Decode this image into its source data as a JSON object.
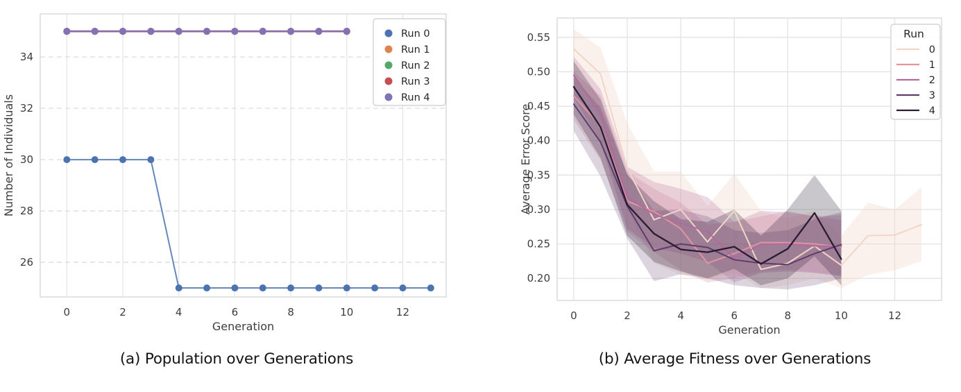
{
  "figure": {
    "background": "#ffffff",
    "spine_color": "#d6d6d9",
    "tick_color": "#3d3d3d"
  },
  "chart_data": [
    {
      "id": "population",
      "type": "line",
      "caption": "(a) Population over Generations",
      "xlabel": "Generation",
      "ylabel": "Number of Individuals",
      "xlim": [
        -0.95,
        13.55
      ],
      "ylim": [
        24.65,
        35.68
      ],
      "xticks": {
        "values": [
          0,
          2,
          4,
          6,
          8,
          10,
          12
        ],
        "labels": [
          "0",
          "2",
          "4",
          "6",
          "8",
          "10",
          "12"
        ]
      },
      "yticks": {
        "values": [
          26,
          28,
          30,
          32,
          34
        ],
        "labels": [
          "26",
          "28",
          "30",
          "32",
          "34"
        ]
      },
      "grid": {
        "vertical": "solid",
        "horizontal": "dashed",
        "vcolor": "#e6e6e6",
        "hcolor": "#dcdcdc"
      },
      "legend": {
        "style": "dots",
        "title": "",
        "entries": [
          {
            "label": "Run 0",
            "color": "#4c72b0"
          },
          {
            "label": "Run 1",
            "color": "#dd8452"
          },
          {
            "label": "Run 2",
            "color": "#55a868"
          },
          {
            "label": "Run 3",
            "color": "#c44e52"
          },
          {
            "label": "Run 4",
            "color": "#8172b3"
          }
        ]
      },
      "series": [
        {
          "name": "Run 1",
          "color": "#dd8452",
          "marker": true,
          "width": 2,
          "x": [
            0,
            1,
            2,
            3,
            4,
            5,
            6,
            7,
            8,
            9,
            10
          ],
          "y": [
            35,
            35,
            35,
            35,
            35,
            35,
            35,
            35,
            35,
            35,
            35
          ]
        },
        {
          "name": "Run 2",
          "color": "#55a868",
          "marker": true,
          "width": 2,
          "x": [
            0,
            1,
            2,
            3,
            4,
            5,
            6,
            7,
            8,
            9,
            10
          ],
          "y": [
            35,
            35,
            35,
            35,
            35,
            35,
            35,
            35,
            35,
            35,
            35
          ]
        },
        {
          "name": "Run 3",
          "color": "#c44e52",
          "marker": true,
          "width": 2.8,
          "x": [
            0,
            1,
            2,
            3,
            4,
            5,
            6,
            7,
            8,
            9,
            10
          ],
          "y": [
            35,
            35,
            35,
            35,
            35,
            35,
            35,
            35,
            35,
            35,
            35
          ]
        },
        {
          "name": "Run 4",
          "color": "#8172b3",
          "marker": true,
          "width": 2.2,
          "opacity": 0.95,
          "x": [
            0,
            1,
            2,
            3,
            4,
            5,
            6,
            7,
            8,
            9,
            10
          ],
          "y": [
            35,
            35,
            35,
            35,
            35,
            35,
            35,
            35,
            35,
            35,
            35
          ]
        },
        {
          "name": "Run 0",
          "color": "#4c72b0",
          "marker": true,
          "width": 2,
          "opacity": 0.85,
          "x": [
            0,
            1,
            2,
            3,
            4,
            5,
            6,
            7,
            8,
            9,
            10,
            11,
            12,
            13
          ],
          "y": [
            30,
            30,
            30,
            30,
            25,
            25,
            25,
            25,
            25,
            25,
            25,
            25,
            25,
            25
          ]
        }
      ]
    },
    {
      "id": "fitness",
      "type": "line",
      "caption": "(b) Average Fitness over Generations",
      "xlabel": "Generation",
      "ylabel": "Average Error Score",
      "xlim": [
        -0.62,
        13.75
      ],
      "ylim": [
        0.168,
        0.578
      ],
      "xticks": {
        "values": [
          0,
          2,
          4,
          6,
          8,
          10,
          12
        ],
        "labels": [
          "0",
          "2",
          "4",
          "6",
          "8",
          "10",
          "12"
        ]
      },
      "yticks": {
        "values": [
          0.2,
          0.25,
          0.3,
          0.35,
          0.4,
          0.45,
          0.5,
          0.55
        ],
        "labels": [
          "0.20",
          "0.25",
          "0.30",
          "0.35",
          "0.40",
          "0.45",
          "0.50",
          "0.55"
        ]
      },
      "grid": {
        "vertical": "solid",
        "horizontal": "solid",
        "vcolor": "#e3e3e3",
        "hcolor": "#e3e3e3"
      },
      "legend": {
        "style": "lines",
        "title": "Run",
        "entries": [
          {
            "label": "0",
            "color": "#f2d5c9"
          },
          {
            "label": "1",
            "color": "#e094a4"
          },
          {
            "label": "2",
            "color": "#b36a9d"
          },
          {
            "label": "3",
            "color": "#5e3c6e"
          },
          {
            "label": "4",
            "color": "#291b34"
          }
        ]
      },
      "series": [
        {
          "name": "0",
          "color": "#f2d5c9",
          "width": 2,
          "band_opacity": 0.35,
          "x": [
            0,
            1,
            2,
            3,
            4,
            5,
            6,
            7,
            8,
            9,
            10,
            11,
            12,
            13
          ],
          "y": [
            0.533,
            0.497,
            0.36,
            0.285,
            0.3,
            0.253,
            0.298,
            0.213,
            0.222,
            0.247,
            0.219,
            0.262,
            0.263,
            0.278
          ],
          "band_hi": [
            0.562,
            0.535,
            0.425,
            0.355,
            0.355,
            0.305,
            0.352,
            0.298,
            0.287,
            0.298,
            0.262,
            0.31,
            0.3,
            0.332
          ],
          "band_lo": [
            0.498,
            0.435,
            0.3,
            0.222,
            0.205,
            0.198,
            0.208,
            0.186,
            0.19,
            0.2,
            0.186,
            0.205,
            0.212,
            0.225
          ]
        },
        {
          "name": "1",
          "color": "#e094a4",
          "width": 2,
          "band_opacity": 0.28,
          "x": [
            0,
            1,
            2,
            3,
            4,
            5,
            6,
            7,
            8,
            9,
            10
          ],
          "y": [
            0.465,
            0.422,
            0.312,
            0.297,
            0.272,
            0.222,
            0.236,
            0.252,
            0.252,
            0.25,
            0.246
          ],
          "band_hi": [
            0.5,
            0.465,
            0.355,
            0.33,
            0.31,
            0.278,
            0.282,
            0.29,
            0.298,
            0.29,
            0.285
          ],
          "band_lo": [
            0.43,
            0.372,
            0.268,
            0.238,
            0.212,
            0.194,
            0.2,
            0.21,
            0.213,
            0.208,
            0.205
          ]
        },
        {
          "name": "2",
          "color": "#b36a9d",
          "width": 2,
          "band_opacity": 0.25,
          "x": [
            0,
            1,
            2,
            3,
            4,
            5,
            6,
            7,
            8,
            9,
            10
          ],
          "y": [
            0.495,
            0.438,
            0.318,
            0.293,
            0.28,
            0.268,
            0.229,
            0.249,
            0.25,
            0.247,
            0.247
          ],
          "band_hi": [
            0.522,
            0.475,
            0.362,
            0.34,
            0.33,
            0.318,
            0.282,
            0.298,
            0.296,
            0.29,
            0.292
          ],
          "band_lo": [
            0.462,
            0.398,
            0.272,
            0.244,
            0.236,
            0.224,
            0.194,
            0.208,
            0.21,
            0.208,
            0.203
          ]
        },
        {
          "name": "3",
          "color": "#5e3c6e",
          "width": 2,
          "band_opacity": 0.22,
          "x": [
            0,
            1,
            2,
            3,
            4,
            5,
            6,
            7,
            8,
            9,
            10
          ],
          "y": [
            0.453,
            0.398,
            0.305,
            0.24,
            0.25,
            0.245,
            0.227,
            0.222,
            0.22,
            0.236,
            0.249
          ],
          "band_hi": [
            0.492,
            0.448,
            0.352,
            0.298,
            0.3,
            0.29,
            0.27,
            0.266,
            0.27,
            0.286,
            0.296
          ],
          "band_lo": [
            0.414,
            0.348,
            0.258,
            0.196,
            0.206,
            0.2,
            0.19,
            0.186,
            0.184,
            0.19,
            0.2
          ]
        },
        {
          "name": "4",
          "color": "#291b34",
          "width": 2.3,
          "band_opacity": 0.25,
          "x": [
            0,
            1,
            2,
            3,
            4,
            5,
            6,
            7,
            8,
            9,
            10
          ],
          "y": [
            0.478,
            0.42,
            0.307,
            0.265,
            0.242,
            0.238,
            0.246,
            0.221,
            0.243,
            0.295,
            0.228
          ],
          "band_hi": [
            0.515,
            0.46,
            0.35,
            0.312,
            0.286,
            0.282,
            0.3,
            0.262,
            0.3,
            0.35,
            0.298
          ],
          "band_lo": [
            0.438,
            0.375,
            0.262,
            0.224,
            0.21,
            0.2,
            0.214,
            0.19,
            0.2,
            0.232,
            0.19
          ]
        }
      ]
    }
  ]
}
